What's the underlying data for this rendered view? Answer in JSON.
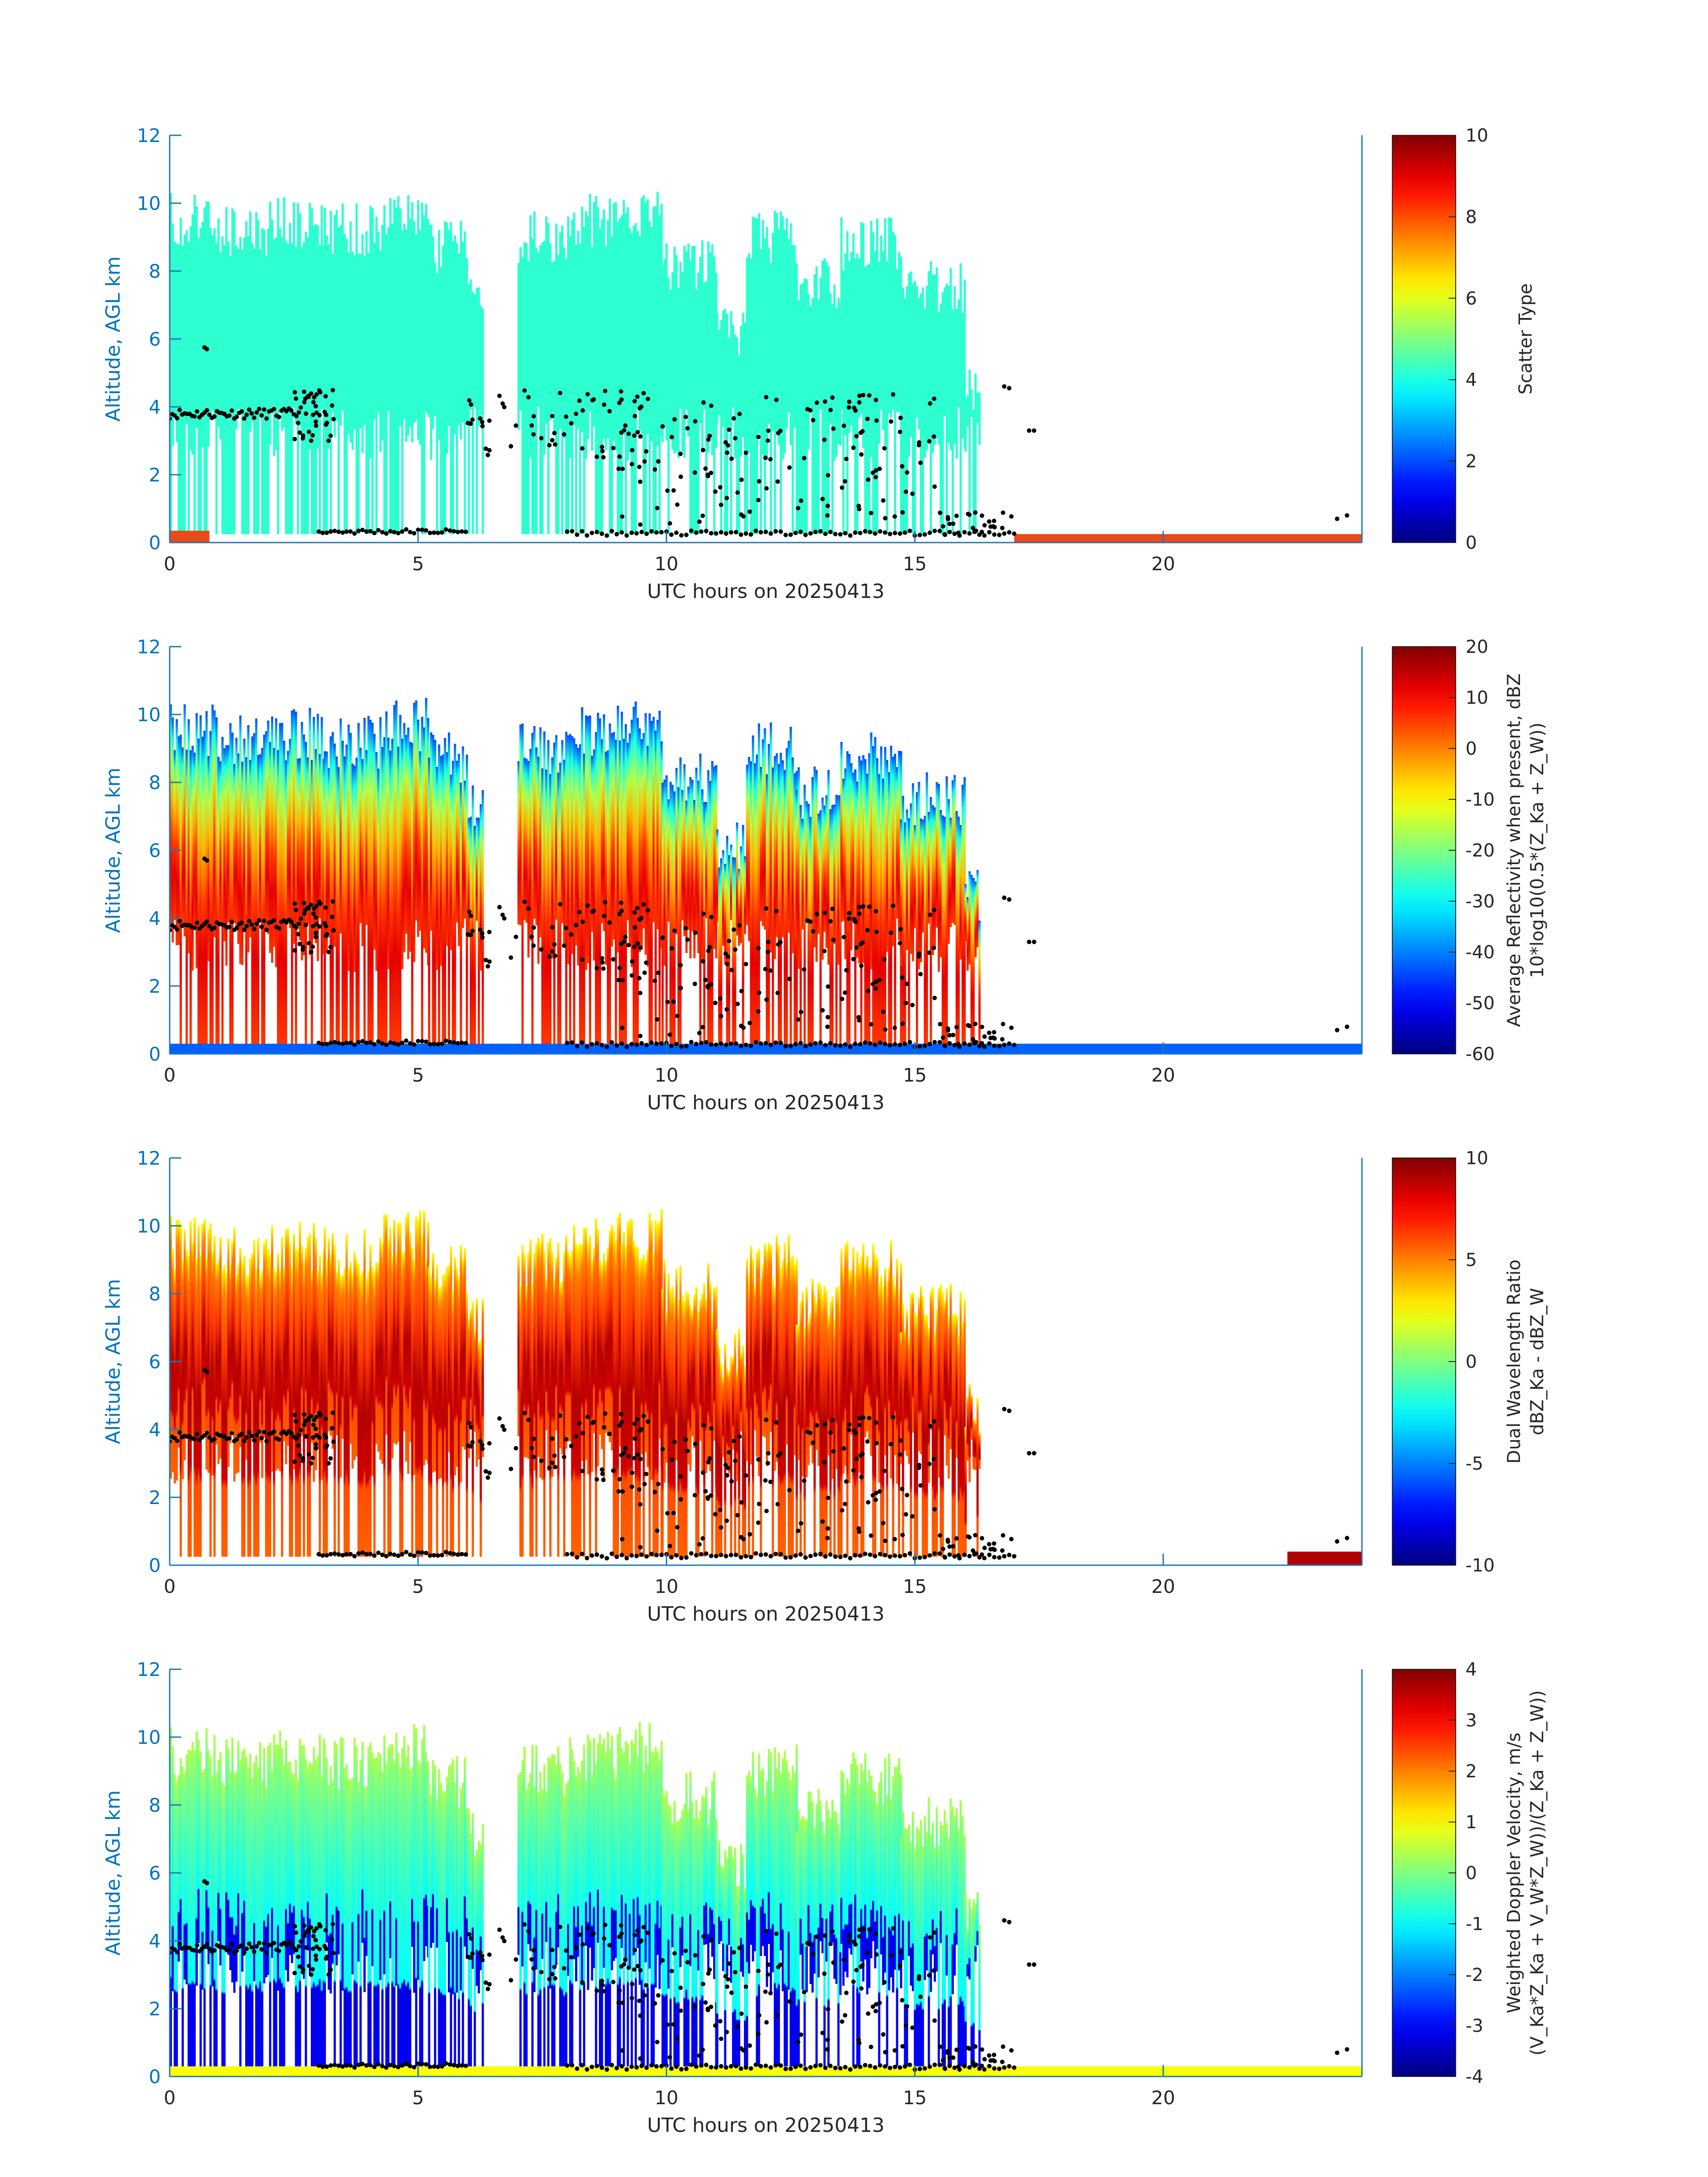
{
  "figure": {
    "colors": {
      "axis": "#1f77b4",
      "axis_label": "#0072bd",
      "text": "#262626",
      "points": "#000000",
      "colormap": "jet",
      "surface_echo": "#e84a1a"
    }
  },
  "chart_data": [
    {
      "type": "heatmap",
      "panel": "scatter-type",
      "xlabel": "UTC hours on 20250413",
      "ylabel": "Altitude, AGL km",
      "colorbar_label": [
        "Scatter Type"
      ],
      "xlim": [
        0,
        24
      ],
      "ylim": [
        0,
        12
      ],
      "clim": [
        0,
        10
      ],
      "xticks": [
        "0",
        "5",
        "10",
        "15",
        "20"
      ],
      "xtick_values": [
        0,
        5,
        10,
        15,
        20
      ],
      "yticks": [
        "0",
        "2",
        "4",
        "6",
        "8",
        "10",
        "12"
      ],
      "ytick_values": [
        0,
        2,
        4,
        6,
        8,
        10,
        12
      ],
      "cbar_ticks": [
        "0",
        "2",
        "4",
        "6",
        "8",
        "10"
      ],
      "cbar_tick_values": [
        0,
        2,
        4,
        6,
        8,
        10
      ],
      "grid": false,
      "dominant_value": 4.2
    },
    {
      "type": "heatmap",
      "panel": "reflectivity",
      "xlabel": "UTC hours on 20250413",
      "ylabel": "Altitude, AGL km",
      "colorbar_label": [
        "Average Reflectivity when present, dBZ",
        "10*log10(0.5*(Z_Ka + Z_W))"
      ],
      "xlim": [
        0,
        24
      ],
      "ylim": [
        0,
        12
      ],
      "clim": [
        -60,
        20
      ],
      "xticks": [
        "0",
        "5",
        "10",
        "15",
        "20"
      ],
      "xtick_values": [
        0,
        5,
        10,
        15,
        20
      ],
      "yticks": [
        "0",
        "2",
        "4",
        "6",
        "8",
        "10",
        "12"
      ],
      "ytick_values": [
        0,
        2,
        4,
        6,
        8,
        10,
        12
      ],
      "cbar_ticks": [
        "-60",
        "-50",
        "-40",
        "-30",
        "-20",
        "-10",
        "0",
        "10",
        "20"
      ],
      "cbar_tick_values": [
        -60,
        -50,
        -40,
        -30,
        -20,
        -10,
        0,
        10,
        20
      ],
      "grid": false,
      "melting_layer_km": 2.8
    },
    {
      "type": "heatmap",
      "panel": "dual-wavelength-ratio",
      "xlabel": "UTC hours on 20250413",
      "ylabel": "Altitude, AGL km",
      "colorbar_label": [
        "Dual Wavelength Ratio",
        "dBZ_Ka - dBZ_W"
      ],
      "xlim": [
        0,
        24
      ],
      "ylim": [
        0,
        12
      ],
      "clim": [
        -10,
        10
      ],
      "xticks": [
        "0",
        "5",
        "10",
        "15",
        "20"
      ],
      "xtick_values": [
        0,
        5,
        10,
        15,
        20
      ],
      "yticks": [
        "0",
        "2",
        "4",
        "6",
        "8",
        "10",
        "12"
      ],
      "ytick_values": [
        0,
        2,
        4,
        6,
        8,
        10,
        12
      ],
      "cbar_ticks": [
        "-10",
        "-5",
        "0",
        "5",
        "10"
      ],
      "cbar_tick_values": [
        -10,
        -5,
        0,
        5,
        10
      ],
      "grid": false,
      "melting_layer_km": 2.8
    },
    {
      "type": "heatmap",
      "panel": "doppler-velocity",
      "xlabel": "UTC hours on 20250413",
      "ylabel": "Altitude, AGL km",
      "colorbar_label": [
        "Weighted Doppler Velocity, m/s",
        "(V_Ka*Z_Ka + V_W*Z_W))/(Z_Ka + Z_W))"
      ],
      "xlim": [
        0,
        24
      ],
      "ylim": [
        0,
        12
      ],
      "clim": [
        -4,
        4
      ],
      "xticks": [
        "0",
        "5",
        "10",
        "15",
        "20"
      ],
      "xtick_values": [
        0,
        5,
        10,
        15,
        20
      ],
      "yticks": [
        "0",
        "2",
        "4",
        "6",
        "8",
        "10",
        "12"
      ],
      "ytick_values": [
        0,
        2,
        4,
        6,
        8,
        10,
        12
      ],
      "cbar_ticks": [
        "-4",
        "-3",
        "-2",
        "-1",
        "0",
        "1",
        "2",
        "3",
        "4"
      ],
      "cbar_tick_values": [
        -4,
        -3,
        -2,
        -1,
        0,
        1,
        2,
        3,
        4
      ],
      "grid": false,
      "melting_layer_km": 2.8
    }
  ],
  "cloud_regions_hours_km": [
    {
      "x0": 0.0,
      "x1": 1.0,
      "top": 10.3
    },
    {
      "x0": 1.0,
      "x1": 2.0,
      "top": 10.0
    },
    {
      "x0": 2.0,
      "x1": 3.1,
      "top": 10.2
    },
    {
      "x0": 3.1,
      "x1": 4.3,
      "top": 10.0
    },
    {
      "x0": 4.3,
      "x1": 5.2,
      "top": 10.5
    },
    {
      "x0": 5.2,
      "x1": 6.0,
      "top": 9.5
    },
    {
      "x0": 6.0,
      "x1": 6.3,
      "top": 8.0
    },
    {
      "x0": 7.0,
      "x1": 8.0,
      "top": 9.8
    },
    {
      "x0": 8.0,
      "x1": 9.0,
      "top": 10.3
    },
    {
      "x0": 9.0,
      "x1": 9.9,
      "top": 10.5
    },
    {
      "x0": 9.9,
      "x1": 11.0,
      "top": 9.0
    },
    {
      "x0": 11.0,
      "x1": 11.6,
      "top": 7.0
    },
    {
      "x0": 11.6,
      "x1": 12.6,
      "top": 9.8
    },
    {
      "x0": 12.6,
      "x1": 13.5,
      "top": 8.5
    },
    {
      "x0": 13.5,
      "x1": 14.7,
      "top": 9.6
    },
    {
      "x0": 14.7,
      "x1": 16.0,
      "top": 8.3
    },
    {
      "x0": 16.0,
      "x1": 16.3,
      "top": 5.5
    }
  ]
}
